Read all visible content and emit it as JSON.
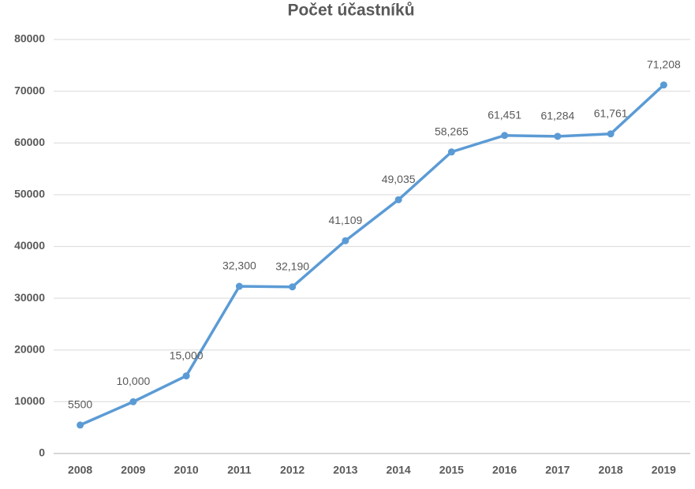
{
  "chart_data": {
    "type": "line",
    "title": "Počet účastníků",
    "categories": [
      "2008",
      "2009",
      "2010",
      "2011",
      "2012",
      "2013",
      "2014",
      "2015",
      "2016",
      "2017",
      "2018",
      "2019"
    ],
    "values": [
      5500,
      10000,
      15000,
      32300,
      32190,
      41109,
      49035,
      58265,
      61451,
      61284,
      61761,
      71208
    ],
    "value_labels": [
      "5500",
      "10,000",
      "15,000",
      "32,300",
      "32,190",
      "41,109",
      "49,035",
      "58,265",
      "61,451",
      "61,284",
      "61,761",
      "71,208"
    ],
    "color": "#5b9bd5",
    "ylim": [
      0,
      80000
    ],
    "yticks": [
      0,
      10000,
      20000,
      30000,
      40000,
      50000,
      60000,
      70000,
      80000
    ],
    "grid": true
  }
}
